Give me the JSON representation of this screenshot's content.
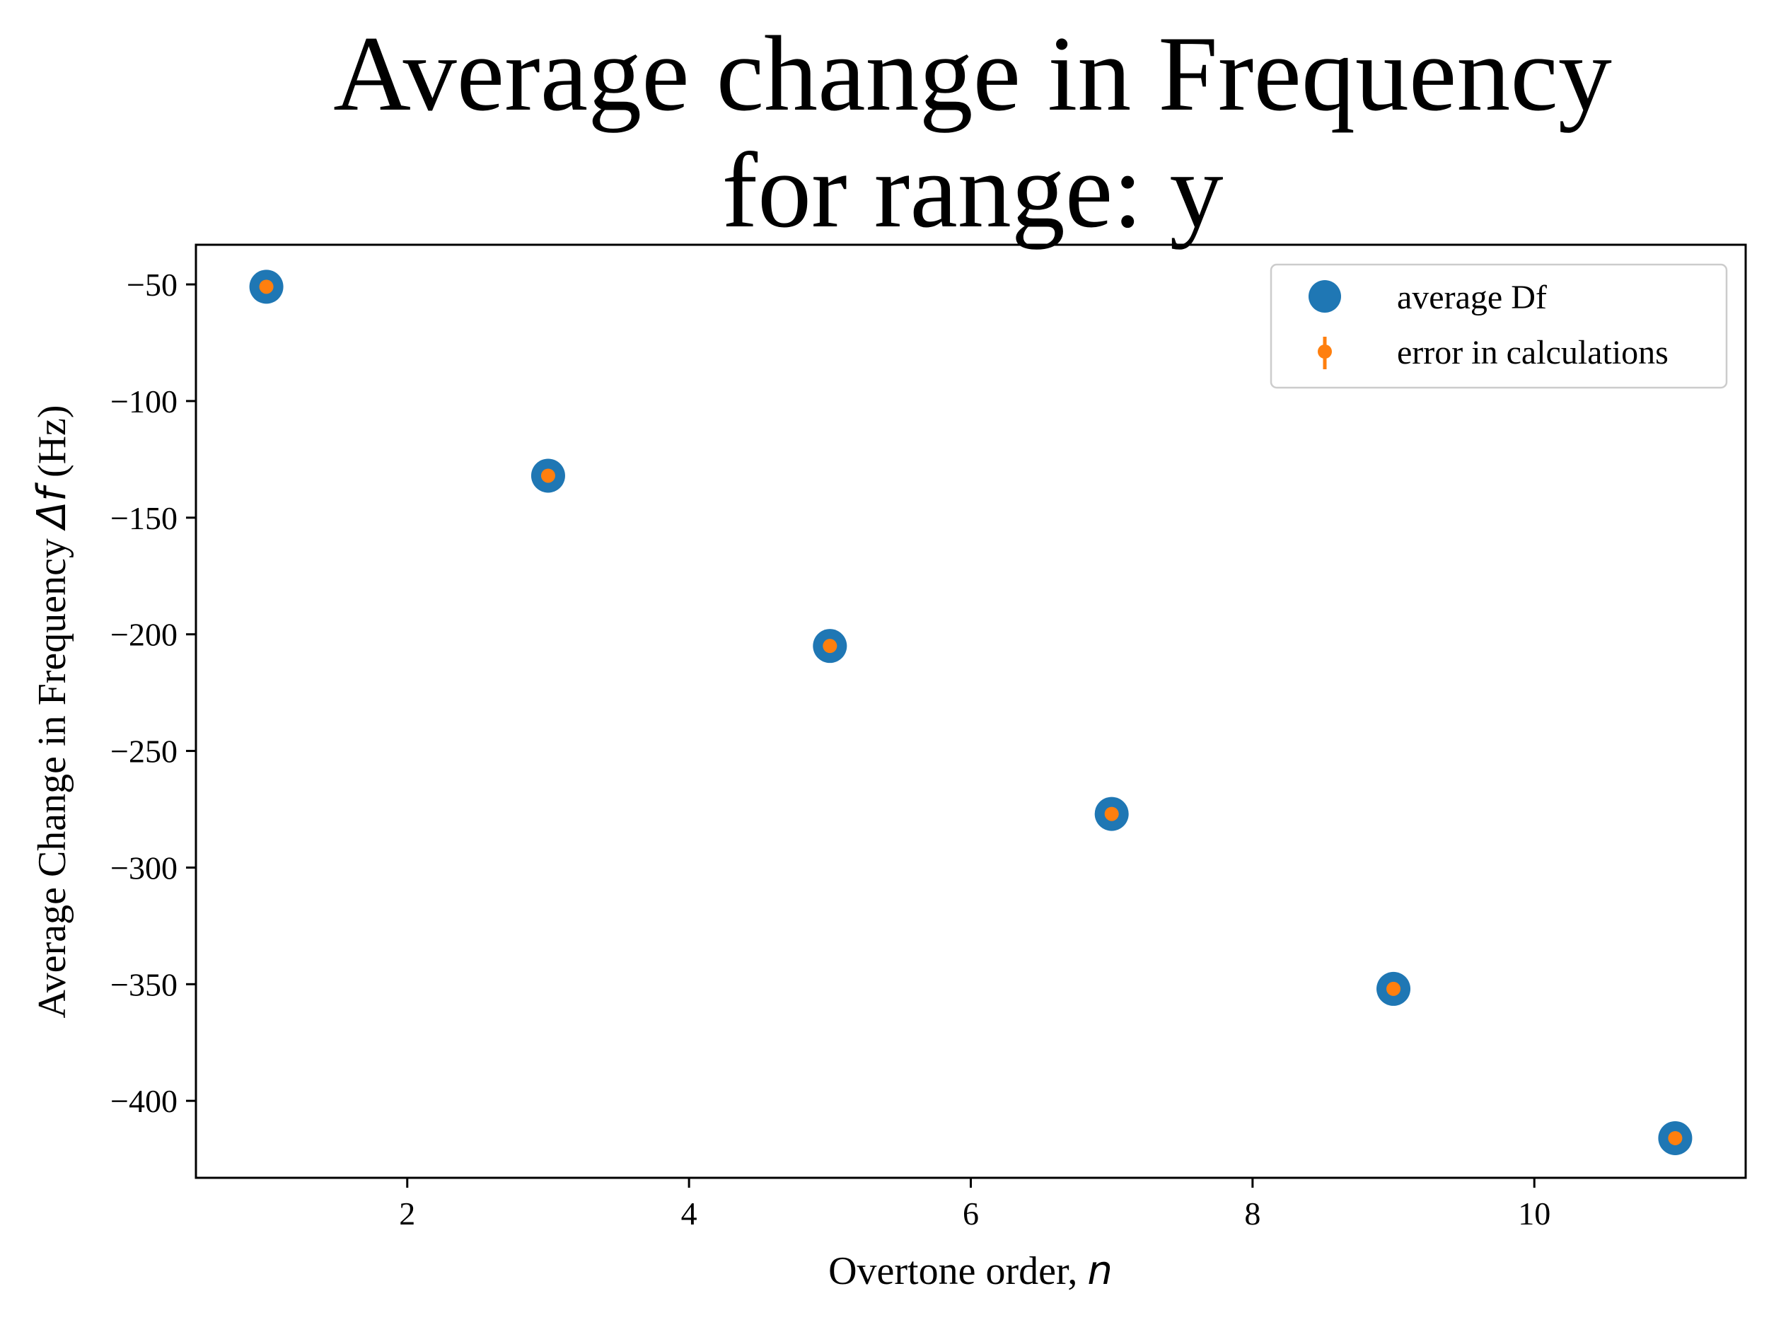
{
  "chart_data": {
    "type": "scatter",
    "title": [
      "Average change in Frequency",
      "for range: y"
    ],
    "xlabel": "Overtone order, ",
    "xlabel_symbol": "n",
    "ylabel": "Average Change in Frequency ",
    "ylabel_symbol": "Δf",
    "ylabel_unit": " (Hz)",
    "xlim": [
      0.5,
      11.5
    ],
    "ylim": [
      -433,
      -33
    ],
    "xticks": [
      2,
      4,
      6,
      8,
      10
    ],
    "xtick_labels": [
      "2",
      "4",
      "6",
      "8",
      "10"
    ],
    "yticks": [
      -50,
      -100,
      -150,
      -200,
      -250,
      -300,
      -350,
      -400
    ],
    "ytick_labels": [
      "−50",
      "−100",
      "−150",
      "−200",
      "−250",
      "−300",
      "−350",
      "−400"
    ],
    "grid": false,
    "legend_position": "top-right",
    "series": [
      {
        "name": "average Df",
        "color": "#1f77b4",
        "marker": "large-circle",
        "x": [
          1,
          3,
          5,
          7,
          9,
          11
        ],
        "y": [
          -51,
          -132,
          -205,
          -277,
          -352,
          -416
        ]
      },
      {
        "name": "error in calculations",
        "color": "#ff7f0e",
        "marker": "small-circle-errorbar",
        "x": [
          1,
          3,
          5,
          7,
          9,
          11
        ],
        "y": [
          -51,
          -132,
          -205,
          -277,
          -352,
          -416
        ]
      }
    ]
  }
}
